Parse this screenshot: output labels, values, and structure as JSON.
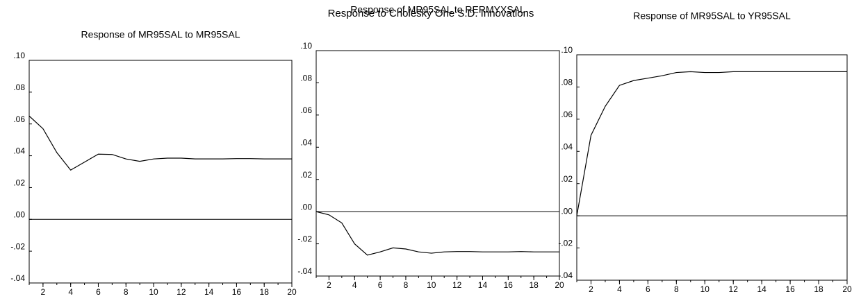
{
  "title": "Response to Cholesky One S.D. Innovations",
  "chart_data": [
    {
      "type": "line",
      "title": "Response of MR95SAL to MR95SAL",
      "zero_line": true,
      "x": [
        1,
        2,
        3,
        4,
        5,
        6,
        7,
        8,
        9,
        10,
        11,
        12,
        13,
        14,
        15,
        16,
        17,
        18,
        19,
        20
      ],
      "series": [
        {
          "color": "#000000",
          "values": [
            0.065,
            0.057,
            0.042,
            0.031,
            0.036,
            0.041,
            0.0408,
            0.038,
            0.0365,
            0.038,
            0.0385,
            0.0385,
            0.038,
            0.038,
            0.038,
            0.0382,
            0.0382,
            0.038,
            0.038,
            0.038
          ]
        }
      ],
      "xlim": [
        1,
        20
      ],
      "xticks": [
        2,
        4,
        6,
        8,
        10,
        12,
        14,
        16,
        18,
        20
      ],
      "ylim": [
        -0.04,
        0.1
      ],
      "yticks": [
        {
          "value": -0.04,
          "label": "-.04"
        },
        {
          "value": -0.02,
          "label": "-.02"
        },
        {
          "value": 0,
          "label": ".00"
        },
        {
          "value": 0.02,
          "label": ".02"
        },
        {
          "value": 0.04,
          "label": ".04"
        },
        {
          "value": 0.06,
          "label": ".06"
        },
        {
          "value": 0.08,
          "label": ".08"
        },
        {
          "value": 0.1,
          "label": ".10"
        }
      ]
    },
    {
      "type": "line",
      "title": "Response of MR95SAL to RERMYXSAL",
      "zero_line": true,
      "x": [
        1,
        2,
        3,
        4,
        5,
        6,
        7,
        8,
        9,
        10,
        11,
        12,
        13,
        14,
        15,
        16,
        17,
        18,
        19,
        20
      ],
      "series": [
        {
          "color": "#000000",
          "values": [
            0,
            -0.002,
            -0.007,
            -0.02,
            -0.027,
            -0.025,
            -0.0225,
            -0.0232,
            -0.025,
            -0.0258,
            -0.025,
            -0.0248,
            -0.0248,
            -0.025,
            -0.025,
            -0.025,
            -0.0248,
            -0.025,
            -0.025,
            -0.025
          ]
        }
      ],
      "xlim": [
        1,
        20
      ],
      "xticks": [
        2,
        4,
        6,
        8,
        10,
        12,
        14,
        16,
        18,
        20
      ],
      "ylim": [
        -0.04,
        0.1
      ],
      "yticks": [
        {
          "value": -0.04,
          "label": "-.04"
        },
        {
          "value": -0.02,
          "label": "-.02"
        },
        {
          "value": 0,
          "label": ".00"
        },
        {
          "value": 0.02,
          "label": ".02"
        },
        {
          "value": 0.04,
          "label": ".04"
        },
        {
          "value": 0.06,
          "label": ".06"
        },
        {
          "value": 0.08,
          "label": ".08"
        },
        {
          "value": 0.1,
          "label": ".10"
        }
      ]
    },
    {
      "type": "line",
      "title": "Response of MR95SAL to YR95SAL",
      "zero_line": true,
      "x": [
        1,
        2,
        3,
        4,
        5,
        6,
        7,
        8,
        9,
        10,
        11,
        12,
        13,
        14,
        15,
        16,
        17,
        18,
        19,
        20
      ],
      "series": [
        {
          "color": "#000000",
          "values": [
            0,
            0.05,
            0.068,
            0.081,
            0.084,
            0.0855,
            0.087,
            0.089,
            0.0895,
            0.089,
            0.089,
            0.0895,
            0.0895,
            0.0895,
            0.0895,
            0.0895,
            0.0895,
            0.0895,
            0.0895,
            0.0895
          ]
        }
      ],
      "xlim": [
        1,
        20
      ],
      "xticks": [
        2,
        4,
        6,
        8,
        10,
        12,
        14,
        16,
        18,
        20
      ],
      "ylim": [
        -0.04,
        0.1
      ],
      "yticks": [
        {
          "value": -0.04,
          "label": "-.04"
        },
        {
          "value": -0.02,
          "label": "-.02"
        },
        {
          "value": 0,
          "label": ".00"
        },
        {
          "value": 0.02,
          "label": ".02"
        },
        {
          "value": 0.04,
          "label": ".04"
        },
        {
          "value": 0.06,
          "label": ".06"
        },
        {
          "value": 0.08,
          "label": ".08"
        },
        {
          "value": 0.1,
          "label": ".10"
        }
      ]
    }
  ]
}
